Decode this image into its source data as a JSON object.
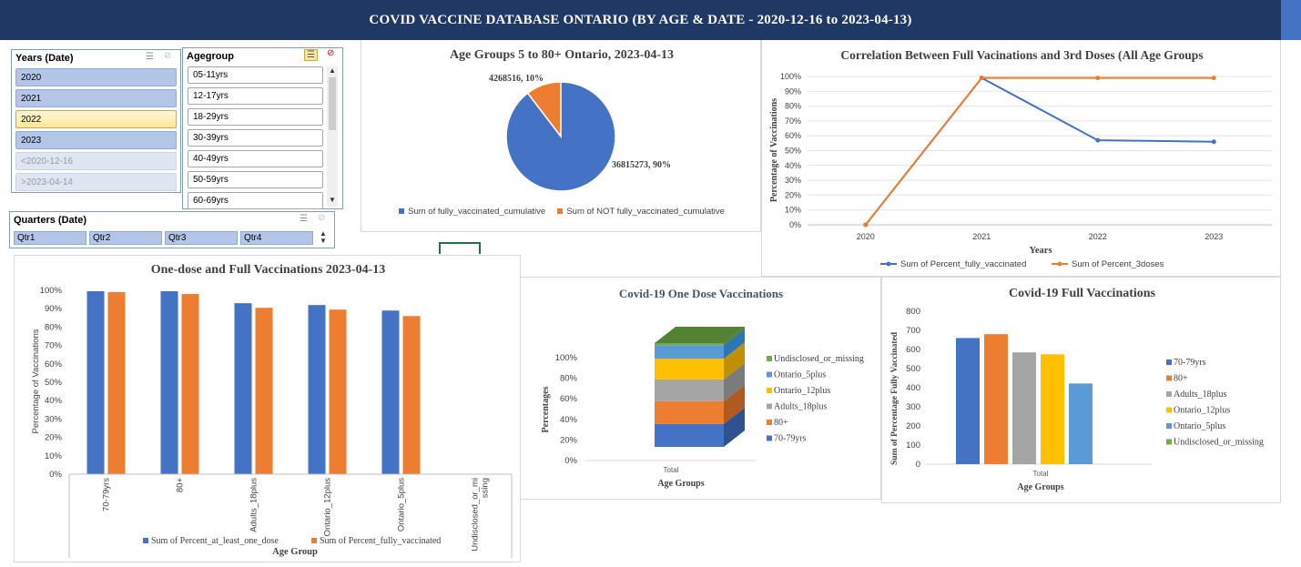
{
  "banner": {
    "title": "COVID VACCINE DATABASE ONTARIO (BY AGE & DATE - 2020-12-16 to 2023-04-13)"
  },
  "colors": {
    "banner": "#1f3864",
    "blue": "#4472c4",
    "orange": "#ed7d31",
    "gray": "#a5a5a5",
    "gold": "#ffc000",
    "lightblue": "#5b9bd5",
    "green": "#70ad47"
  },
  "years_slicer": {
    "title": "Years (Date)",
    "items": [
      {
        "label": "2020",
        "state": "selected"
      },
      {
        "label": "2021",
        "state": "selected"
      },
      {
        "label": "2022",
        "state": "highlighted"
      },
      {
        "label": "2023",
        "state": "selected"
      },
      {
        "label": "<2020-12-16",
        "state": "dim"
      },
      {
        "label": ">2023-04-14",
        "state": "dim"
      }
    ]
  },
  "agegroup_slicer": {
    "title": "Agegroup",
    "items": [
      "05-11yrs",
      "12-17yrs",
      "18-29yrs",
      "30-39yrs",
      "40-49yrs",
      "50-59yrs",
      "60-69yrs"
    ]
  },
  "quarters_slicer": {
    "title": "Quarters (Date)",
    "items": [
      "Qtr1",
      "Qtr2",
      "Qtr3",
      "Qtr4"
    ]
  },
  "pie_chart": {
    "title": "Age Groups 5 to 80+ Ontario, 2023-04-13",
    "chart_data": {
      "type": "pie",
      "slices": [
        {
          "name": "Sum of fully_vaccinated_cumulative",
          "value": 36815273,
          "percent": 90,
          "label": "36815273, 90%"
        },
        {
          "name": "Sum of NOT fully_vaccinated_cumulative",
          "value": 4268516,
          "percent": 10,
          "label": "4268516, 10%"
        }
      ]
    }
  },
  "line_chart": {
    "title": "Correlation Between Full Vacinations and 3rd Doses (All Age Groups",
    "ylabel": "Percentage of Vaccinations",
    "xlabel": "Years",
    "y_ticks": [
      "0%",
      "10%",
      "20%",
      "30%",
      "40%",
      "50%",
      "60%",
      "70%",
      "80%",
      "90%",
      "100%"
    ],
    "chart_data": {
      "type": "line",
      "x": [
        "2020",
        "2021",
        "2022",
        "2023"
      ],
      "ylim": [
        0,
        100
      ],
      "series": [
        {
          "name": "Sum of Percent_fully_vaccinated",
          "values": [
            0,
            99,
            57,
            56
          ]
        },
        {
          "name": "Sum of Percent_3doses",
          "values": [
            0,
            99,
            99,
            99
          ]
        }
      ]
    }
  },
  "bar_chart_1": {
    "title": "One-dose and Full Vaccinations  2023-04-13",
    "ylabel": "Percentage of Vaccinations",
    "xlabel": "Age Group",
    "y_ticks": [
      "0%",
      "10%",
      "20%",
      "30%",
      "40%",
      "50%",
      "60%",
      "70%",
      "80%",
      "90%",
      "100%"
    ],
    "chart_data": {
      "type": "bar",
      "categories": [
        "70-79yrs",
        "80+",
        "Adults_18plus",
        "Ontario_12plus",
        "Ontario_5plus",
        "Undisclosed_or_missing"
      ],
      "category_labels": [
        "70-79yrs",
        "80+",
        "Adults_18plus",
        "Ontario_12plus",
        "Ontario_5plus",
        "Undisclosed_or_mi ssing"
      ],
      "ylim": [
        0,
        100
      ],
      "series": [
        {
          "name": "Sum of Percent_at_least_one_dose",
          "values": [
            99.5,
            99.5,
            93,
            92,
            89,
            0
          ]
        },
        {
          "name": "Sum of Percent_fully_vaccinated",
          "values": [
            99,
            98,
            90.5,
            89.5,
            86,
            0
          ]
        }
      ]
    }
  },
  "stacked_chart": {
    "title": "Covid-19 One Dose Vaccinations",
    "ylabel": "Percentages",
    "xlabel": "Age Groups",
    "category": "Total",
    "y_ticks": [
      "0%",
      "20%",
      "40%",
      "60%",
      "80%",
      "100%"
    ],
    "chart_data": {
      "type": "bar",
      "stacked": true,
      "categories": [
        "Total"
      ],
      "series": [
        {
          "name": "70-79yrs",
          "values": [
            22
          ]
        },
        {
          "name": "80+",
          "values": [
            22
          ]
        },
        {
          "name": "Adults_18plus",
          "values": [
            21
          ]
        },
        {
          "name": "Ontario_12plus",
          "values": [
            20
          ]
        },
        {
          "name": "Ontario_5plus",
          "values": [
            13
          ]
        },
        {
          "name": "Undisclosed_or_missing",
          "values": [
            2
          ]
        }
      ]
    },
    "legend": [
      "Undisclosed_or_missing",
      "Ontario_5plus",
      "Ontario_12plus",
      "Adults_18plus",
      "80+",
      "70-79yrs"
    ]
  },
  "full_chart": {
    "title": "Covid-19 Full Vaccinations",
    "ylabel": "Sum of Percentage Fully Vaccinated",
    "xlabel": "Age Groups",
    "category": "Total",
    "y_ticks": [
      "0",
      "100",
      "200",
      "300",
      "400",
      "500",
      "600",
      "700",
      "800"
    ],
    "chart_data": {
      "type": "bar",
      "categories": [
        "Total"
      ],
      "ylim": [
        0,
        800
      ],
      "series": [
        {
          "name": "70-79yrs",
          "values": [
            660
          ]
        },
        {
          "name": "80+",
          "values": [
            680
          ]
        },
        {
          "name": "Adults_18plus",
          "values": [
            585
          ]
        },
        {
          "name": "Ontario_12plus",
          "values": [
            575
          ]
        },
        {
          "name": "Ontario_5plus",
          "values": [
            422
          ]
        },
        {
          "name": "Undisclosed_or_missing",
          "values": [
            0
          ]
        }
      ]
    },
    "legend": [
      "70-79yrs",
      "80+",
      "Adults_18plus",
      "Ontario_12plus",
      "Ontario_5plus",
      "Undisclosed_or_missing"
    ]
  }
}
